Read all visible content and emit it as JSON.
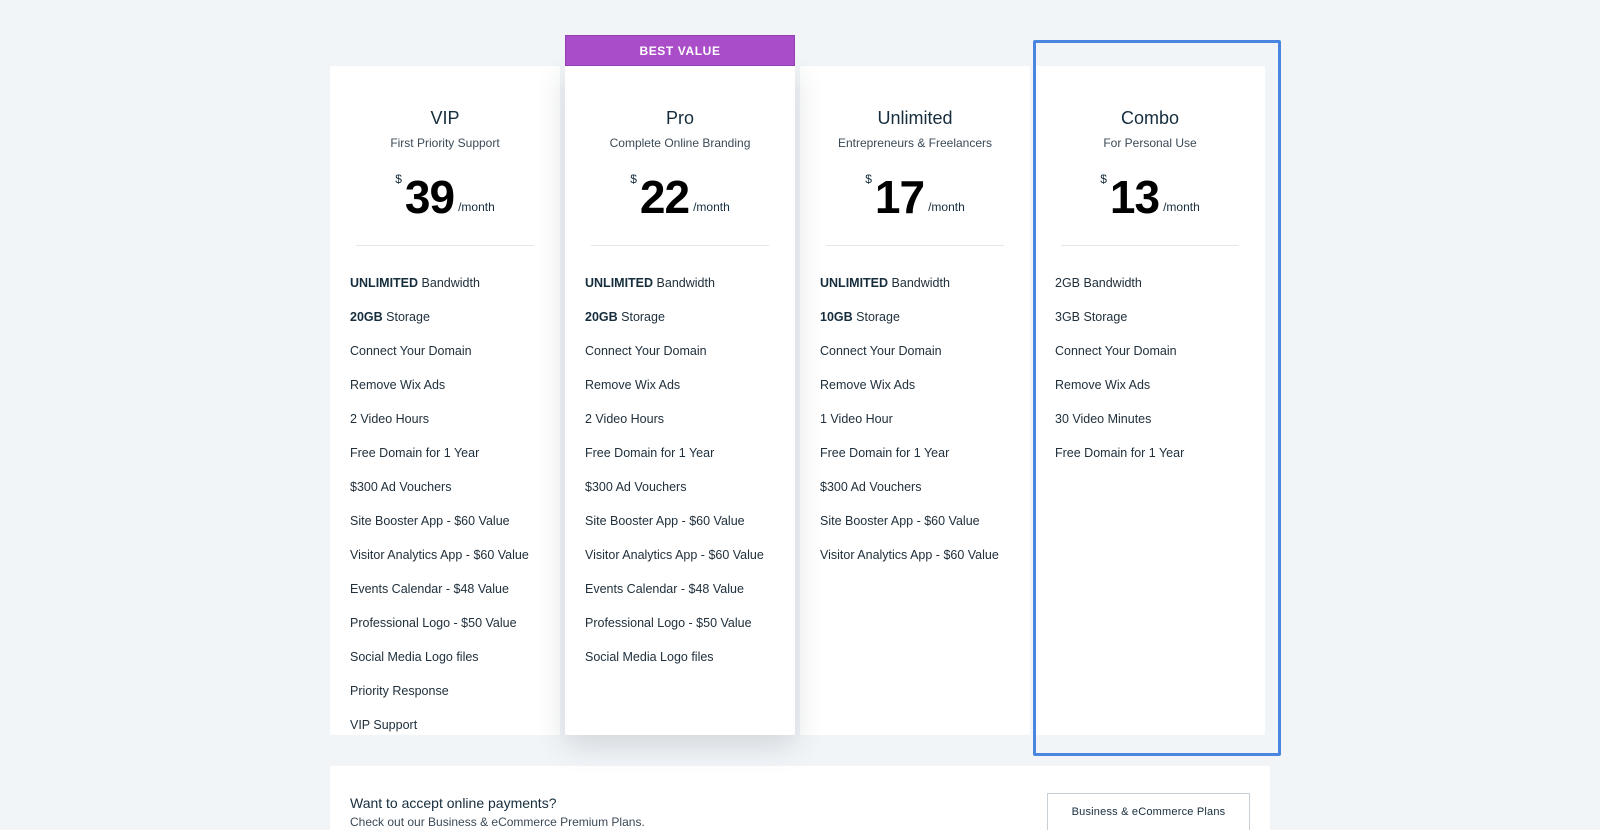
{
  "plans": [
    {
      "name": "VIP",
      "subtitle": "First Priority Support",
      "currency": "$",
      "price": "39",
      "period": "/month",
      "features": [
        {
          "bold": "UNLIMITED",
          "text": " Bandwidth"
        },
        {
          "bold": "20GB",
          "text": " Storage"
        },
        {
          "bold": "",
          "text": "Connect Your Domain"
        },
        {
          "bold": "",
          "text": "Remove Wix Ads"
        },
        {
          "bold": "",
          "text": "2 Video Hours"
        },
        {
          "bold": "",
          "text": "Free Domain for 1 Year"
        },
        {
          "bold": "",
          "text": "$300 Ad Vouchers"
        },
        {
          "bold": "",
          "text": "Site Booster App - $60 Value"
        },
        {
          "bold": "",
          "text": "Visitor Analytics App - $60 Value"
        },
        {
          "bold": "",
          "text": "Events Calendar - $48 Value"
        },
        {
          "bold": "",
          "text": "Professional Logo - $50 Value"
        },
        {
          "bold": "",
          "text": "Social Media Logo files"
        },
        {
          "bold": "",
          "text": "Priority Response"
        },
        {
          "bold": "",
          "text": "VIP Support"
        }
      ]
    },
    {
      "name": "Pro",
      "subtitle": "Complete Online Branding",
      "badge": "BEST VALUE",
      "currency": "$",
      "price": "22",
      "period": "/month",
      "features": [
        {
          "bold": "UNLIMITED",
          "text": " Bandwidth"
        },
        {
          "bold": "20GB",
          "text": " Storage"
        },
        {
          "bold": "",
          "text": "Connect Your Domain"
        },
        {
          "bold": "",
          "text": "Remove Wix Ads"
        },
        {
          "bold": "",
          "text": "2 Video Hours"
        },
        {
          "bold": "",
          "text": "Free Domain for 1 Year"
        },
        {
          "bold": "",
          "text": "$300 Ad Vouchers"
        },
        {
          "bold": "",
          "text": "Site Booster App - $60 Value"
        },
        {
          "bold": "",
          "text": "Visitor Analytics App - $60 Value"
        },
        {
          "bold": "",
          "text": "Events Calendar - $48 Value"
        },
        {
          "bold": "",
          "text": "Professional Logo - $50 Value"
        },
        {
          "bold": "",
          "text": "Social Media Logo files"
        }
      ]
    },
    {
      "name": "Unlimited",
      "subtitle": "Entrepreneurs & Freelancers",
      "currency": "$",
      "price": "17",
      "period": "/month",
      "features": [
        {
          "bold": "UNLIMITED",
          "text": " Bandwidth"
        },
        {
          "bold": "10GB",
          "text": " Storage"
        },
        {
          "bold": "",
          "text": "Connect Your Domain"
        },
        {
          "bold": "",
          "text": "Remove Wix Ads"
        },
        {
          "bold": "",
          "text": "1 Video Hour"
        },
        {
          "bold": "",
          "text": "Free Domain for 1 Year"
        },
        {
          "bold": "",
          "text": "$300 Ad Vouchers"
        },
        {
          "bold": "",
          "text": "Site Booster App - $60 Value"
        },
        {
          "bold": "",
          "text": "Visitor Analytics App - $60 Value"
        }
      ]
    },
    {
      "name": "Combo",
      "subtitle": "For Personal Use",
      "currency": "$",
      "price": "13",
      "period": "/month",
      "highlighted": true,
      "features": [
        {
          "bold": "",
          "text": "2GB Bandwidth"
        },
        {
          "bold": "",
          "text": "3GB Storage"
        },
        {
          "bold": "",
          "text": "Connect Your Domain"
        },
        {
          "bold": "",
          "text": "Remove Wix Ads"
        },
        {
          "bold": "",
          "text": "30 Video Minutes"
        },
        {
          "bold": "",
          "text": "Free Domain for 1 Year"
        }
      ]
    }
  ],
  "payments": {
    "title": "Want to accept online payments?",
    "subtitle": "Check out our Business & eCommerce Premium Plans.",
    "button_label": "Business & eCommerce Plans"
  },
  "colors": {
    "badge": "#aa4dc8",
    "highlight_border": "#4a86e0",
    "background": "#f2f5f8"
  }
}
